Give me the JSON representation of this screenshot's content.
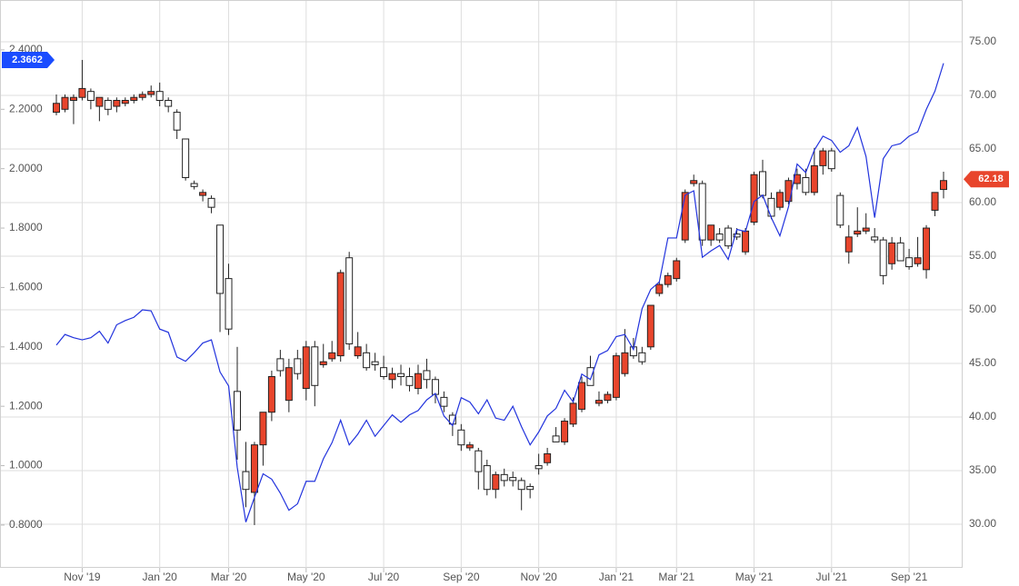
{
  "chart_data": {
    "type": "candlestick",
    "categories": [
      null,
      null,
      null,
      "Nov '19",
      null,
      null,
      null,
      null,
      null,
      null,
      null,
      null,
      "Jan '20",
      null,
      null,
      null,
      null,
      null,
      null,
      null,
      "Mar '20",
      null,
      null,
      null,
      null,
      null,
      null,
      null,
      null,
      "May '20",
      null,
      null,
      null,
      null,
      null,
      null,
      null,
      null,
      "Jul '20",
      null,
      null,
      null,
      null,
      null,
      null,
      null,
      null,
      "Sep '20",
      null,
      null,
      null,
      null,
      null,
      null,
      null,
      null,
      "Nov '20",
      null,
      null,
      null,
      null,
      null,
      null,
      null,
      null,
      "Jan '21",
      null,
      null,
      null,
      null,
      null,
      null,
      "Mar '21",
      null,
      null,
      null,
      null,
      null,
      null,
      null,
      null,
      "May '21",
      null,
      null,
      null,
      null,
      null,
      null,
      null,
      null,
      "Jul '21",
      null,
      null,
      null,
      null,
      null,
      null,
      null,
      null,
      "Sep '21",
      null,
      null,
      null,
      null
    ],
    "series": [
      {
        "type": "candlestick",
        "up_color": "#e8452c",
        "down_color": "#ffffff",
        "open": [
          2.19,
          2.2,
          2.23,
          2.24,
          2.26,
          2.21,
          2.23,
          2.21,
          2.22,
          2.23,
          2.24,
          2.25,
          2.26,
          2.23,
          2.19,
          2.1,
          1.95,
          1.91,
          1.9,
          1.81,
          1.63,
          1.25,
          0.98,
          0.91,
          1.07,
          1.18,
          1.36,
          1.22,
          1.36,
          1.26,
          1.4,
          1.34,
          1.36,
          1.37,
          1.7,
          1.37,
          1.38,
          1.35,
          1.33,
          1.29,
          1.31,
          1.3,
          1.26,
          1.32,
          1.29,
          1.23,
          1.17,
          1.12,
          1.06,
          1.05,
          1.0,
          0.92,
          0.97,
          0.96,
          0.95,
          0.93,
          1.0,
          1.01,
          1.1,
          1.08,
          1.14,
          1.19,
          1.33,
          1.21,
          1.22,
          1.23,
          1.31,
          1.4,
          1.38,
          1.4,
          1.58,
          1.61,
          1.63,
          1.76,
          1.95,
          1.95,
          1.76,
          1.78,
          1.8,
          1.78,
          1.72,
          1.82,
          1.99,
          1.9,
          1.87,
          1.89,
          1.95,
          1.97,
          1.92,
          2.01,
          2.06,
          1.91,
          1.72,
          1.78,
          1.79,
          1.77,
          1.76,
          1.68,
          1.75,
          1.7,
          1.68,
          1.66,
          1.86,
          1.93
        ],
        "high": [
          2.25,
          2.25,
          2.25,
          2.3662,
          2.27,
          2.24,
          2.24,
          2.24,
          2.24,
          2.25,
          2.26,
          2.28,
          2.29,
          2.24,
          2.2,
          2.1,
          1.96,
          1.93,
          1.91,
          1.81,
          1.68,
          1.4,
          1.08,
          1.08,
          1.18,
          1.32,
          1.39,
          1.36,
          1.39,
          1.42,
          1.42,
          1.41,
          1.42,
          1.66,
          1.72,
          1.45,
          1.41,
          1.38,
          1.37,
          1.33,
          1.34,
          1.33,
          1.34,
          1.36,
          1.3,
          1.25,
          1.18,
          1.14,
          1.08,
          1.06,
          1.02,
          0.98,
          0.99,
          0.98,
          0.96,
          0.94,
          1.04,
          1.06,
          1.13,
          1.16,
          1.23,
          1.3,
          1.37,
          1.25,
          1.25,
          1.38,
          1.46,
          1.43,
          1.4,
          1.54,
          1.62,
          1.65,
          1.7,
          1.93,
          1.98,
          1.96,
          1.81,
          1.8,
          1.81,
          1.8,
          1.8,
          1.99,
          2.03,
          1.92,
          1.93,
          1.97,
          2.0,
          2.0,
          2.07,
          2.07,
          2.07,
          1.92,
          1.81,
          1.87,
          1.85,
          1.8,
          1.77,
          1.77,
          1.77,
          1.73,
          1.77,
          1.81,
          1.92,
          1.99
        ],
        "low": [
          2.18,
          2.19,
          2.15,
          2.23,
          2.2,
          2.16,
          2.18,
          2.19,
          2.21,
          2.22,
          2.23,
          2.24,
          2.21,
          2.19,
          2.1,
          1.96,
          1.93,
          1.89,
          1.85,
          1.45,
          1.44,
          1.02,
          0.86,
          0.8,
          1.0,
          1.15,
          1.3,
          1.18,
          1.29,
          1.22,
          1.2,
          1.33,
          1.35,
          1.35,
          1.39,
          1.36,
          1.32,
          1.32,
          1.29,
          1.26,
          1.27,
          1.25,
          1.24,
          1.26,
          1.21,
          1.18,
          1.1,
          1.05,
          1.05,
          0.92,
          0.9,
          0.89,
          0.93,
          0.93,
          0.85,
          0.89,
          0.97,
          1.0,
          1.08,
          1.07,
          1.13,
          1.18,
          1.27,
          1.2,
          1.21,
          1.22,
          1.3,
          1.36,
          1.34,
          1.39,
          1.57,
          1.6,
          1.62,
          1.75,
          1.94,
          1.74,
          1.74,
          1.75,
          1.73,
          1.76,
          1.71,
          1.81,
          1.9,
          1.83,
          1.86,
          1.88,
          1.93,
          1.91,
          1.91,
          1.98,
          1.99,
          1.8,
          1.68,
          1.77,
          1.78,
          1.75,
          1.61,
          1.66,
          1.69,
          1.66,
          1.67,
          1.63,
          1.84,
          1.9
        ],
        "close": [
          2.22,
          2.24,
          2.24,
          2.27,
          2.23,
          2.24,
          2.2,
          2.23,
          2.23,
          2.24,
          2.25,
          2.26,
          2.23,
          2.21,
          2.13,
          1.97,
          1.94,
          1.92,
          1.87,
          1.58,
          1.46,
          1.12,
          0.92,
          1.07,
          1.18,
          1.3,
          1.32,
          1.33,
          1.31,
          1.4,
          1.27,
          1.35,
          1.38,
          1.65,
          1.41,
          1.4,
          1.33,
          1.34,
          1.3,
          1.31,
          1.3,
          1.27,
          1.31,
          1.29,
          1.24,
          1.2,
          1.14,
          1.07,
          1.07,
          0.98,
          0.92,
          0.97,
          0.95,
          0.95,
          0.92,
          0.92,
          0.99,
          1.04,
          1.08,
          1.15,
          1.21,
          1.28,
          1.27,
          1.22,
          1.24,
          1.37,
          1.38,
          1.37,
          1.35,
          1.54,
          1.61,
          1.64,
          1.69,
          1.92,
          1.96,
          1.76,
          1.81,
          1.76,
          1.74,
          1.77,
          1.79,
          1.98,
          1.91,
          1.84,
          1.92,
          1.96,
          1.98,
          1.92,
          2.01,
          2.06,
          2.0,
          1.81,
          1.77,
          1.79,
          1.8,
          1.76,
          1.64,
          1.75,
          1.69,
          1.67,
          1.7,
          1.8,
          1.92,
          1.96
        ]
      },
      {
        "type": "line",
        "axis": "y2",
        "color": "#2233dd",
        "values": [
          46.7,
          47.7,
          47.4,
          47.2,
          47.4,
          48.0,
          46.9,
          48.6,
          49.0,
          49.3,
          50.0,
          49.9,
          48.2,
          47.9,
          45.6,
          45.2,
          46.0,
          46.9,
          47.2,
          44.2,
          42.9,
          35.3,
          30.2,
          32.5,
          34.7,
          34.2,
          32.9,
          31.3,
          31.9,
          34.0,
          34.0,
          36.1,
          37.6,
          39.7,
          37.4,
          38.4,
          39.7,
          38.2,
          39.2,
          40.2,
          39.5,
          40.2,
          40.6,
          41.6,
          42.2,
          40.1,
          39.2,
          41.8,
          41.4,
          40.3,
          41.6,
          39.9,
          39.7,
          41.0,
          39.1,
          37.4,
          38.6,
          40.1,
          40.8,
          42.5,
          41.4,
          44.0,
          43.5,
          45.8,
          46.2,
          47.5,
          47.7,
          46.3,
          50.1,
          51.9,
          52.6,
          56.7,
          56.7,
          60.7,
          61.1,
          54.9,
          55.5,
          56.0,
          54.7,
          57.5,
          57.3,
          60.1,
          60.7,
          58.6,
          56.9,
          59.6,
          63.6,
          62.8,
          64.9,
          66.2,
          65.8,
          64.7,
          65.3,
          67.0,
          64.3,
          58.6,
          64.1,
          65.3,
          65.5,
          66.2,
          66.6,
          68.7,
          70.4,
          73.0
        ]
      }
    ],
    "ylim": [
      0.656,
      2.568
    ],
    "yticks": [
      {
        "value": 0.8,
        "label": "0.8000"
      },
      {
        "value": 1.0,
        "label": "1.0000"
      },
      {
        "value": 1.2,
        "label": "1.2000"
      },
      {
        "value": 1.4,
        "label": "1.4000"
      },
      {
        "value": 1.6,
        "label": "1.6000"
      },
      {
        "value": 1.8,
        "label": "1.8000"
      },
      {
        "value": 2.0,
        "label": "2.0000"
      },
      {
        "value": 2.2,
        "label": "2.2000"
      },
      {
        "value": 2.4,
        "label": "2.4000"
      }
    ],
    "y2lim": [
      25.93,
      78.9
    ],
    "y2ticks": [
      {
        "value": 30,
        "label": "30.00"
      },
      {
        "value": 35,
        "label": "35.00"
      },
      {
        "value": 40,
        "label": "40.00"
      },
      {
        "value": 45,
        "label": "45.00"
      },
      {
        "value": 50,
        "label": "50.00"
      },
      {
        "value": 55,
        "label": "55.00"
      },
      {
        "value": 60,
        "label": "60.00"
      },
      {
        "value": 65,
        "label": "65.00"
      },
      {
        "value": 70,
        "label": "70.00"
      },
      {
        "value": 75,
        "label": "75.00"
      }
    ],
    "grid": true,
    "annotations": [
      {
        "value": 2.3662,
        "axis": "y",
        "color": "#1a4cff"
      },
      {
        "value": 62.18,
        "axis": "y2",
        "color": "#e8452c"
      }
    ]
  }
}
